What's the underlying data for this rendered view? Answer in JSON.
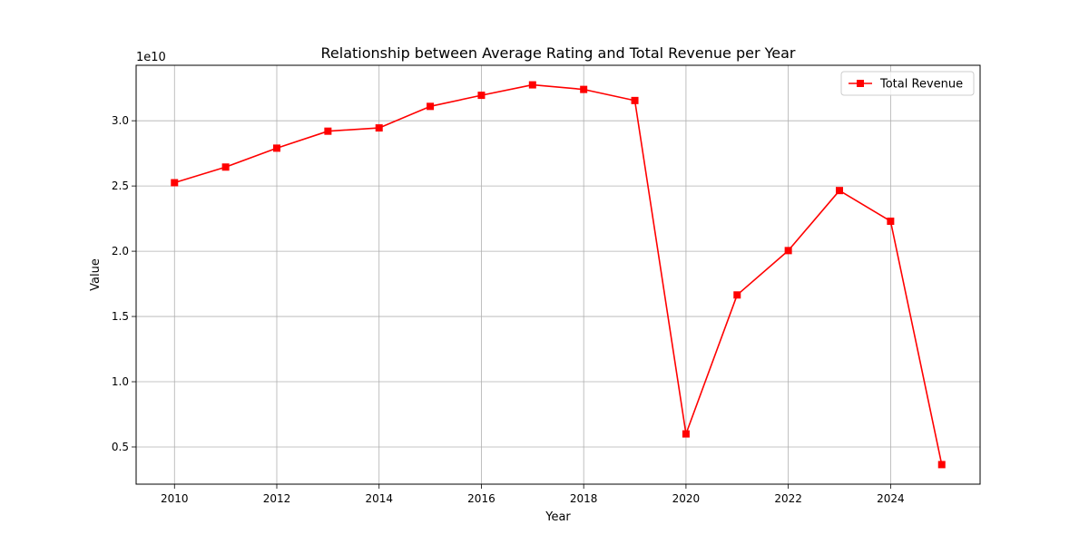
{
  "chart_data": {
    "type": "line",
    "title": "Relationship between Average Rating and Total Revenue per Year",
    "xlabel": "Year",
    "ylabel": "Value",
    "y_offset_label": "1e10",
    "xlim": [
      2009.25,
      2025.75
    ],
    "ylim": [
      2.15,
      34.25
    ],
    "y_scale_note": "values in units of 1e10",
    "x_ticks": [
      2010,
      2012,
      2014,
      2016,
      2018,
      2020,
      2022,
      2024
    ],
    "x_tick_labels": [
      "2010",
      "2012",
      "2014",
      "2016",
      "2018",
      "2020",
      "2022",
      "2024"
    ],
    "y_ticks": [
      5,
      10,
      15,
      20,
      25,
      30
    ],
    "y_tick_labels": [
      "0.5",
      "1.0",
      "1.5",
      "2.0",
      "2.5",
      "3.0"
    ],
    "grid": true,
    "legend_position": "top-right",
    "x": [
      2010,
      2011,
      2012,
      2013,
      2014,
      2015,
      2016,
      2017,
      2018,
      2019,
      2020,
      2021,
      2022,
      2023,
      2024,
      2025
    ],
    "series": [
      {
        "name": "Total Revenue",
        "color": "#ff0000",
        "marker": "square",
        "values": [
          25.25,
          26.45,
          27.9,
          29.2,
          29.45,
          31.1,
          31.95,
          32.75,
          32.4,
          31.55,
          6.0,
          16.65,
          20.05,
          24.65,
          22.3,
          3.65
        ]
      }
    ]
  }
}
